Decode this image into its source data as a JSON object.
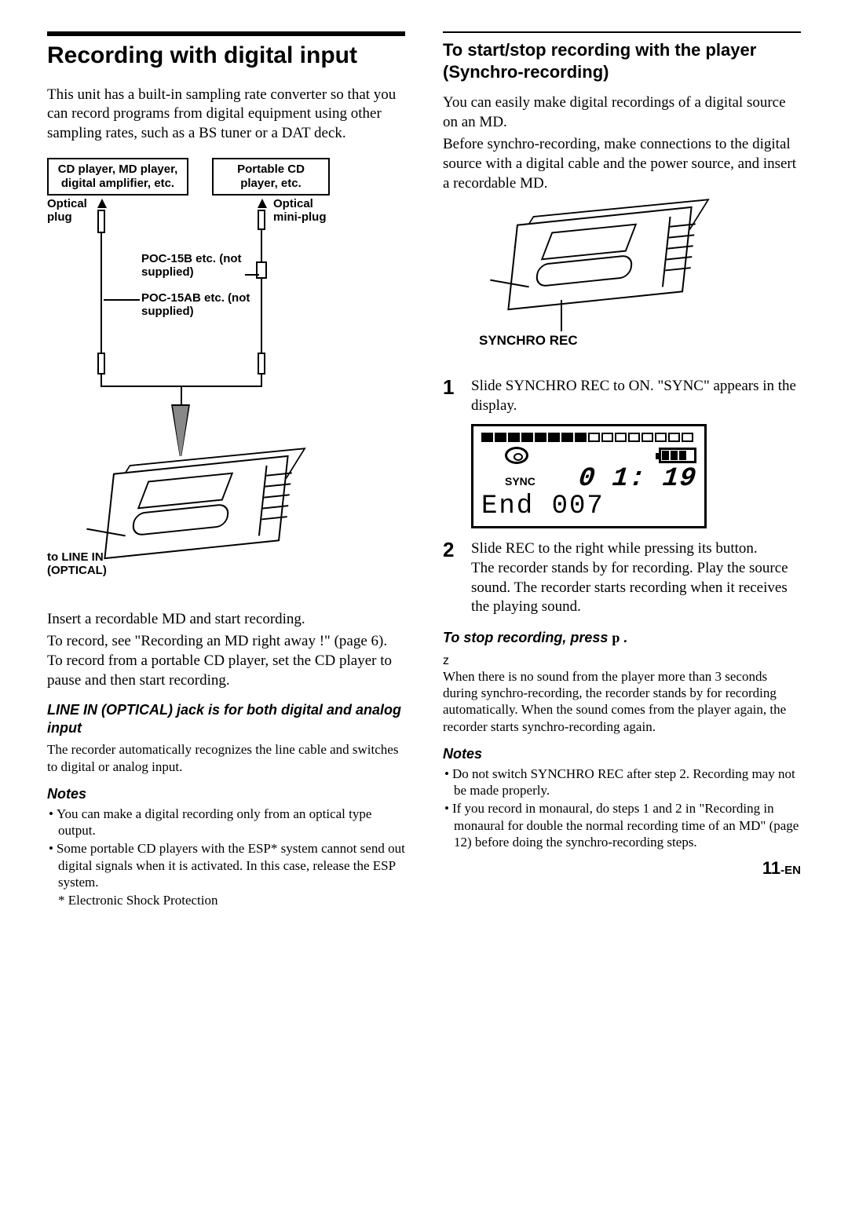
{
  "left": {
    "title": "Recording with digital input",
    "intro": "This unit has a built-in sampling rate converter so that you can record programs from digital equipment using other sampling rates, such as a BS tuner or a DAT deck.",
    "diagram": {
      "box_left": "CD player, MD player, digital amplifier, etc.",
      "box_right": "Portable CD player, etc.",
      "optical_plug": "Optical plug",
      "optical_miniplug": "Optical mini-plug",
      "poc15b": "POC-15B etc. (not supplied)",
      "poc15ab": "POC-15AB etc. (not supplied)",
      "to_linein": "to LINE IN (OPTICAL)"
    },
    "after_diagram_1": "Insert a recordable MD and start recording.",
    "after_diagram_2": "To record, see \"Recording an MD right away !\" (page 6). To record from a portable CD player, set the CD player to pause and then start recording.",
    "sub1_title": "LINE IN (OPTICAL) jack is for both digital and analog input",
    "sub1_body": "The recorder automatically recognizes the line cable and switches to digital or analog input.",
    "notes_title": "Notes",
    "notes": [
      "You can make a digital recording only from an optical type output.",
      "Some portable CD players with the ESP* system cannot send out digital signals when it is activated. In this case, release the ESP system."
    ],
    "footnote": "* Electronic Shock Protection"
  },
  "right": {
    "title": "To start/stop recording with the player (Synchro-recording)",
    "intro1": "You can easily make digital recordings of a digital source on an MD.",
    "intro2": "Before synchro-recording, make connections to the digital source with a digital cable and the power source, and insert a recordable MD.",
    "synchro_label": "SYNCHRO REC",
    "step1": "Slide SYNCHRO REC to ON. \"SYNC\" appears in the display.",
    "lcd": {
      "filled_bars": 8,
      "empty_bars": 8,
      "sync": "SYNC",
      "time_prefix": "0",
      "time": "1: 19",
      "text_line": "End  007"
    },
    "step2": "Slide REC to the right while pressing its button.\nThe recorder stands by for recording. Play the source sound. The recorder starts recording when it receives the playing sound.",
    "stop_line_prefix": "To stop recording, press ",
    "stop_glyph": "p",
    "stop_line_suffix": " .",
    "tip_glyph": "z",
    "tip_body": "When there is no sound from the player more than 3 seconds during synchro-recording, the recorder stands by for recording automatically. When the sound comes from the player again, the recorder starts synchro-recording again.",
    "notes_title": "Notes",
    "notes": [
      "Do not switch SYNCHRO REC after step 2. Recording may not be made properly.",
      "If you record in monaural, do steps 1 and 2 in \"Recording in monaural for double the normal recording time of an MD\" (page 12) before doing the synchro-recording steps."
    ]
  },
  "page_number_big": "11",
  "page_number_suffix": "-EN"
}
